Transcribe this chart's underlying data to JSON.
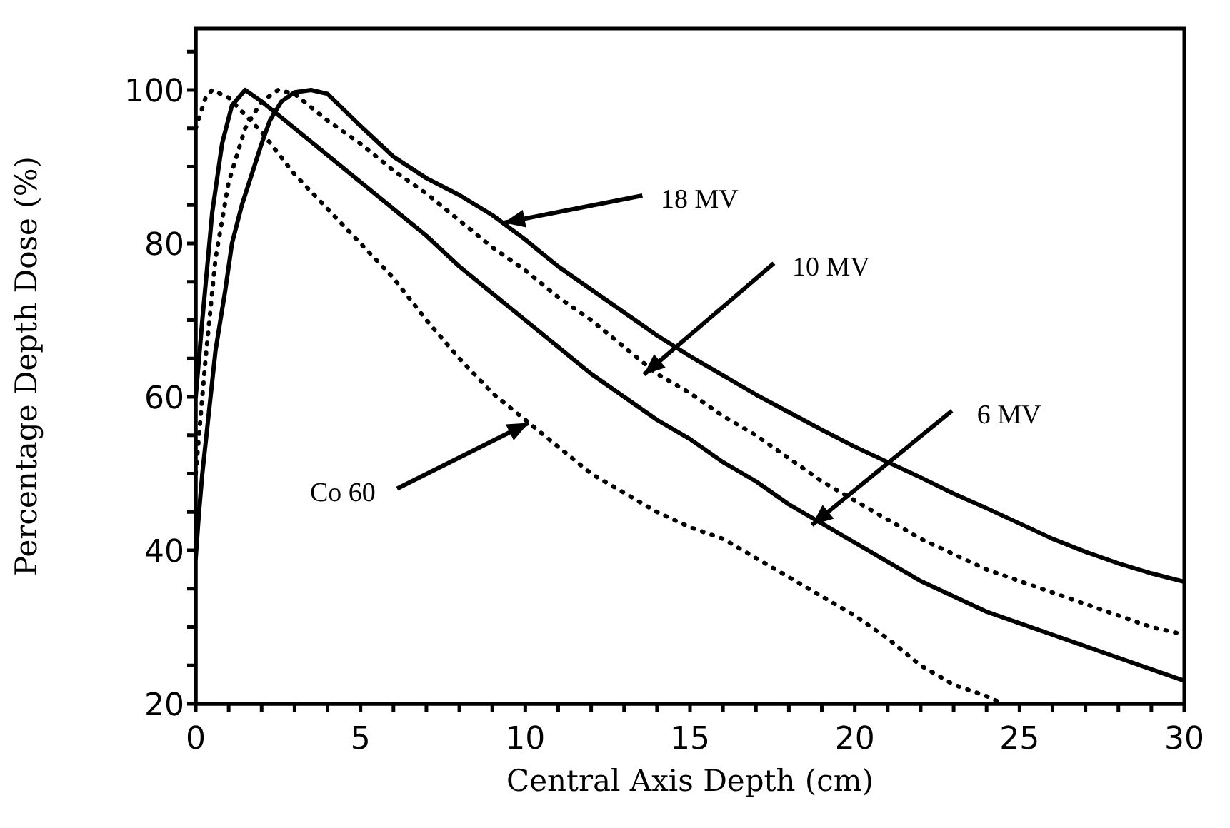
{
  "chart_data": {
    "type": "line",
    "xlabel": "Central Axis Depth (cm)",
    "ylabel": "Percentage Depth Dose (%)",
    "xlim": [
      0,
      30
    ],
    "ylim": [
      20,
      108
    ],
    "xticks": [
      0,
      {
        "value": 1,
        "label": null
      },
      {
        "value": 2,
        "label": null
      },
      {
        "value": 3,
        "label": null
      },
      {
        "value": 4,
        "label": null
      },
      5,
      {
        "value": 6,
        "label": null
      },
      {
        "value": 7,
        "label": null
      },
      {
        "value": 8,
        "label": null
      },
      {
        "value": 9,
        "label": null
      },
      10,
      {
        "value": 11,
        "label": null
      },
      {
        "value": 12,
        "label": null
      },
      {
        "value": 13,
        "label": null
      },
      {
        "value": 14,
        "label": null
      },
      15,
      {
        "value": 16,
        "label": null
      },
      {
        "value": 17,
        "label": null
      },
      {
        "value": 18,
        "label": null
      },
      {
        "value": 19,
        "label": null
      },
      20,
      {
        "value": 21,
        "label": null
      },
      {
        "value": 22,
        "label": null
      },
      {
        "value": 23,
        "label": null
      },
      {
        "value": 24,
        "label": null
      },
      25,
      {
        "value": 26,
        "label": null
      },
      {
        "value": 27,
        "label": null
      },
      {
        "value": 28,
        "label": null
      },
      {
        "value": 29,
        "label": null
      },
      30
    ],
    "yticks": [
      20,
      {
        "value": 25,
        "label": null
      },
      {
        "value": 30,
        "label": null
      },
      {
        "value": 35,
        "label": null
      },
      40,
      {
        "value": 45,
        "label": null
      },
      {
        "value": 50,
        "label": null
      },
      {
        "value": 55,
        "label": null
      },
      60,
      {
        "value": 65,
        "label": null
      },
      {
        "value": 70,
        "label": null
      },
      {
        "value": 75,
        "label": null
      },
      80,
      {
        "value": 85,
        "label": null
      },
      {
        "value": 90,
        "label": null
      },
      {
        "value": 95,
        "label": null
      },
      100,
      {
        "value": 105,
        "label": null
      }
    ],
    "marker": "none",
    "series": [
      {
        "color": "#000000",
        "line_style": "solid",
        "x": [
          0,
          0.1,
          0.2,
          0.4,
          0.6,
          0.9,
          1.1,
          1.4,
          1.7,
          2,
          2.25,
          2.6,
          3,
          3.5,
          4,
          5,
          6,
          7,
          8,
          9,
          10,
          11,
          12,
          13,
          14,
          15,
          16,
          17,
          18,
          19,
          20,
          21,
          22,
          23,
          24,
          25,
          26,
          27,
          28,
          29,
          30
        ],
        "values": [
          39,
          45,
          50,
          58,
          66,
          74,
          80,
          85,
          89,
          93,
          96,
          98.5,
          99.7,
          100,
          99.5,
          95.3,
          91.3,
          88.5,
          86.3,
          83.7,
          80.5,
          77,
          74,
          71,
          68,
          65.3,
          62.8,
          60.3,
          58,
          55.7,
          53.5,
          51.5,
          49.5,
          47.4,
          45.5,
          43.5,
          41.5,
          39.8,
          38.3,
          37,
          35.9
        ]
      },
      {
        "color": "#000000",
        "line_style": "dotted",
        "x": [
          0,
          0.3,
          0.6,
          1,
          1.5,
          2,
          2.5,
          3,
          4,
          5,
          6,
          7,
          8,
          9,
          10,
          11,
          12,
          13,
          14,
          15,
          16,
          17,
          18,
          19,
          20,
          21,
          22,
          23,
          24,
          25,
          26,
          27,
          28,
          29,
          30
        ],
        "values": [
          50,
          65,
          78,
          88,
          95,
          98.5,
          100,
          99.5,
          96,
          93,
          89.5,
          86.5,
          83,
          79.5,
          76.5,
          73,
          70,
          66.5,
          63,
          60.5,
          57.5,
          55,
          52,
          49,
          46.5,
          44,
          41.5,
          39.5,
          37.5,
          36,
          34.5,
          33,
          31.5,
          30,
          29
        ]
      },
      {
        "color": "#000000",
        "line_style": "solid",
        "x": [
          0,
          0.2,
          0.5,
          0.8,
          1.1,
          1.5,
          2,
          3,
          4,
          5,
          6,
          7,
          8,
          9,
          10,
          11,
          12,
          13,
          14,
          15,
          16,
          17,
          18,
          19,
          20,
          21,
          22,
          23,
          24,
          25,
          26,
          27,
          28,
          29,
          30
        ],
        "values": [
          60,
          70,
          84,
          93,
          98,
          100,
          98.5,
          95,
          91.5,
          88,
          84.5,
          81,
          77,
          73.5,
          70,
          66.5,
          63,
          60,
          57,
          54.5,
          51.5,
          49,
          46,
          43.5,
          41,
          38.5,
          36,
          34,
          32,
          30.5,
          29,
          27.5,
          26,
          24.5,
          23
        ]
      },
      {
        "color": "#000000",
        "line_style": "dotted",
        "x": [
          0,
          0.3,
          0.5,
          1,
          2,
          3,
          4,
          5,
          6,
          7,
          8,
          9,
          10,
          11,
          12,
          13,
          14,
          15,
          16,
          17,
          18,
          19,
          20,
          21,
          22,
          23,
          24,
          24.5
        ],
        "values": [
          95,
          99,
          100,
          99,
          94.5,
          89,
          84.5,
          80,
          75.5,
          70,
          65,
          60.5,
          57,
          53.5,
          50,
          47.5,
          45,
          43,
          41.5,
          39,
          36.5,
          34,
          31.5,
          28.5,
          25,
          22.5,
          21,
          20
        ]
      }
    ],
    "annotations": [
      {
        "text": "18 MV",
        "x": 9.35,
        "y": 82.7
      },
      {
        "text": "10 MV",
        "x": 13.6,
        "y": 62.9
      },
      {
        "text": "6 MV",
        "x": 18.7,
        "y": 43.3
      },
      {
        "text": "Co 60",
        "x": 10.1,
        "y": 56.6
      }
    ]
  }
}
